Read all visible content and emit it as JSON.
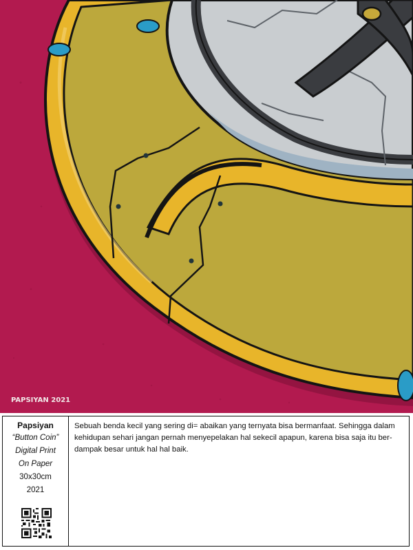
{
  "artwork": {
    "signature": "PAPSIYAN 2021",
    "colors": {
      "background": "#b21a4f",
      "yellow_body": "#e8b52a",
      "yellow_shade": "#bca83c",
      "metal_plate": "#c9cdd0",
      "handle": "#3a3c40",
      "outline": "#141414",
      "accent_ring": "#2a9cc7"
    }
  },
  "caption": {
    "artist": "Papsiyan",
    "title": "“Button Coin”",
    "medium": "Digital Print",
    "support": "On Paper",
    "size": "30x30cm",
    "year": "2021",
    "qr_icon": "qr-code-icon",
    "description": "Sebuah benda kecil yang sering di= abaikan yang ternyata bisa bermanfaat. Sehingga dalam kehidupan sehari jangan pernah menyepelakan hal sekecil apapun, karena bisa saja itu ber-dampak besar untuk hal hal baik."
  }
}
